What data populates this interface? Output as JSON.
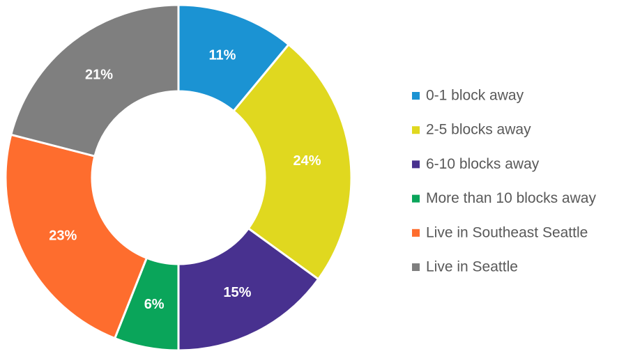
{
  "chart_data": {
    "type": "donut",
    "categories": [
      "0-1 block away",
      "2-5 blocks away",
      "6-10 blocks away",
      "More than 10 blocks away",
      "Live in Southeast Seattle",
      "Live in Seattle"
    ],
    "values": [
      11,
      24,
      15,
      6,
      23,
      21
    ],
    "value_labels": [
      "11%",
      "24%",
      "15%",
      "6%",
      "23%",
      "21%"
    ],
    "colors": [
      "#1b93d3",
      "#e0d81f",
      "#48318f",
      "#0aa55a",
      "#fe6d2e",
      "#7f7f7f"
    ],
    "legend": "right"
  }
}
